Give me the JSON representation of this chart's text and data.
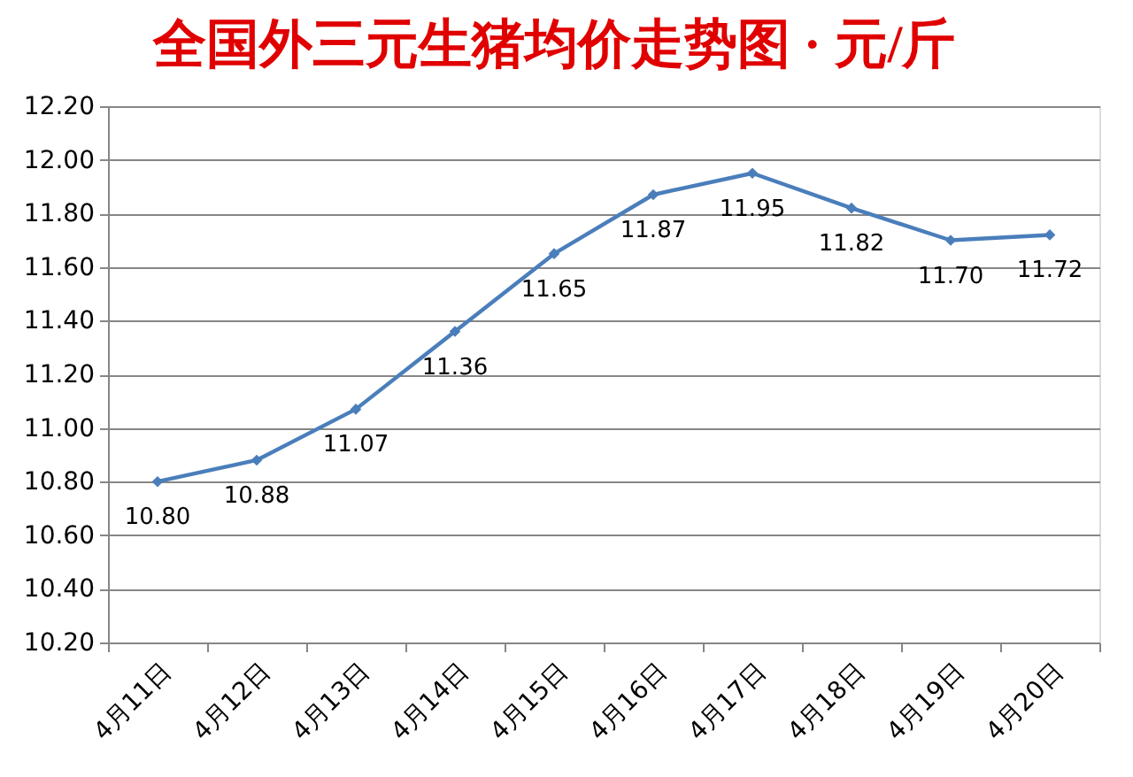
{
  "chart_data": {
    "type": "line",
    "title": "全国外三元生猪均价走势图 · 元/斤",
    "categories": [
      "4月11日",
      "4月12日",
      "4月13日",
      "4月14日",
      "4月15日",
      "4月16日",
      "4月17日",
      "4月18日",
      "4月19日",
      "4月20日"
    ],
    "series": [
      {
        "color": "#4a7ebb",
        "values": [
          10.8,
          10.88,
          11.07,
          11.36,
          11.65,
          11.87,
          11.95,
          11.82,
          11.7,
          11.72
        ],
        "value_labels": [
          "10.80",
          "10.88",
          "11.07",
          "11.36",
          "11.65",
          "11.87",
          "11.95",
          "11.82",
          "11.70",
          "11.72"
        ]
      }
    ],
    "ylim": [
      10.2,
      12.2
    ],
    "yticks": [
      {
        "value": 10.2,
        "label": "10.20"
      },
      {
        "value": 10.4,
        "label": "10.40"
      },
      {
        "value": 10.6,
        "label": "10.60"
      },
      {
        "value": 10.8,
        "label": "10.80"
      },
      {
        "value": 11.0,
        "label": "11.00"
      },
      {
        "value": 11.2,
        "label": "11.20"
      },
      {
        "value": 11.4,
        "label": "11.40"
      },
      {
        "value": 11.6,
        "label": "11.60"
      },
      {
        "value": 11.8,
        "label": "11.80"
      },
      {
        "value": 12.0,
        "label": "12.00"
      },
      {
        "value": 12.2,
        "label": "12.20"
      }
    ],
    "grid": "y",
    "marker": "diamond",
    "line_style": "solid"
  }
}
